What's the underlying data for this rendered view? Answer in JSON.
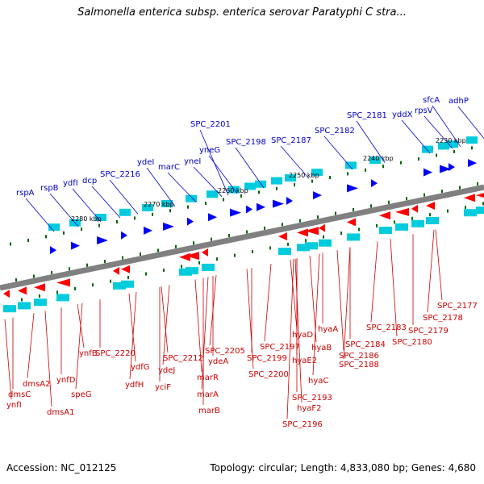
{
  "title": "Salmonella enterica subsp. enterica serovar Paratyphi C stra...",
  "footer": {
    "accession": "Accession: NC_012125",
    "summary": "Topology: circular; Length: 4,833,080 bp; Genes: 4,680"
  },
  "colors": {
    "forward_label": "#0000cc",
    "reverse_label": "#cc0000",
    "forward_gene": "#0000ff",
    "reverse_gene": "#ff0000",
    "cds_match": "#00ccdd",
    "backbone": "#808080",
    "tick": "#006600"
  },
  "scale_labels": [
    "2280 kbp",
    "2270 kbp",
    "2260 kbp",
    "2250 kbp",
    "2240 kbp",
    "2230 kbp"
  ],
  "forward_genes": [
    "rspA",
    "rspB",
    "ydfI",
    "dcp",
    "SPC_2216",
    "ydeI",
    "marC",
    "yneI",
    "yneG",
    "SPC_2201",
    "SPC_2198",
    "SPC_2187",
    "SPC_2182",
    "SPC_2181",
    "yddX",
    "rpsV",
    "sfcA",
    "adhP"
  ],
  "reverse_genes": [
    "ynfI",
    "dmsC",
    "dmsA2",
    "dmsA1",
    "ynfD",
    "speG",
    "ynfB",
    "SPC_2220",
    "ydfH",
    "ydfG",
    "yciF",
    "ydeJ",
    "SPC_2212",
    "marB",
    "marA",
    "marR",
    "ydeA",
    "SPC_2205",
    "SPC_2200",
    "SPC_2199",
    "SPC_2197",
    "hyaD",
    "hyaE2",
    "SPC_2196",
    "hyaF2",
    "SPC_2193",
    "hyaC",
    "hyaB",
    "hyaA",
    "SPC_2188",
    "SPC_2186",
    "SPC_2184",
    "SPC_2183",
    "SPC_2180",
    "SPC_2179",
    "SPC_2178",
    "SPC_2177"
  ]
}
